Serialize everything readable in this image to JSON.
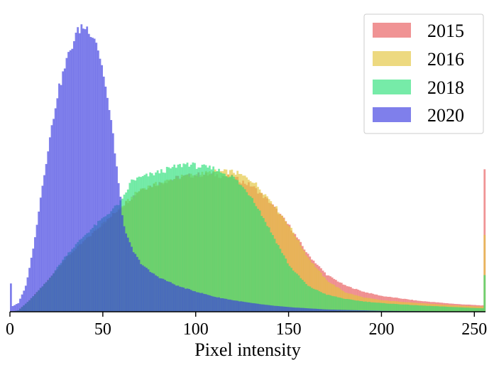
{
  "chart_data": {
    "type": "histogram",
    "title": "",
    "xlabel": "Pixel intensity",
    "ylabel": "",
    "xlim": [
      0,
      256
    ],
    "ylim": [
      0,
      1
    ],
    "x_ticks": [
      "0",
      "50",
      "100",
      "150",
      "200",
      "250"
    ],
    "y_axis_visible": false,
    "bins": 256,
    "legend": {
      "placement": "top-right"
    },
    "series": [
      {
        "name": "2015",
        "color": "#e8595a",
        "profile": [
          [
            0,
            0
          ],
          [
            4,
            0.005
          ],
          [
            10,
            0.04
          ],
          [
            20,
            0.11
          ],
          [
            30,
            0.19
          ],
          [
            40,
            0.25
          ],
          [
            50,
            0.31
          ],
          [
            60,
            0.37
          ],
          [
            70,
            0.43
          ],
          [
            80,
            0.45
          ],
          [
            90,
            0.47
          ],
          [
            100,
            0.48
          ],
          [
            110,
            0.48
          ],
          [
            120,
            0.47
          ],
          [
            130,
            0.44
          ],
          [
            140,
            0.38
          ],
          [
            150,
            0.3
          ],
          [
            160,
            0.2
          ],
          [
            170,
            0.13
          ],
          [
            180,
            0.092
          ],
          [
            190,
            0.07
          ],
          [
            200,
            0.055
          ],
          [
            220,
            0.038
          ],
          [
            240,
            0.027
          ],
          [
            254,
            0.022
          ],
          [
            255,
            0.49
          ]
        ]
      },
      {
        "name": "2016",
        "color": "#e4c53c",
        "profile": [
          [
            0,
            0
          ],
          [
            4,
            0.005
          ],
          [
            10,
            0.04
          ],
          [
            20,
            0.11
          ],
          [
            30,
            0.19
          ],
          [
            40,
            0.25
          ],
          [
            50,
            0.31
          ],
          [
            60,
            0.37
          ],
          [
            70,
            0.43
          ],
          [
            80,
            0.45
          ],
          [
            90,
            0.47
          ],
          [
            100,
            0.48
          ],
          [
            110,
            0.49
          ],
          [
            120,
            0.49
          ],
          [
            130,
            0.46
          ],
          [
            140,
            0.39
          ],
          [
            150,
            0.3
          ],
          [
            160,
            0.19
          ],
          [
            170,
            0.11
          ],
          [
            180,
            0.068
          ],
          [
            190,
            0.05
          ],
          [
            200,
            0.04
          ],
          [
            220,
            0.03
          ],
          [
            240,
            0.022
          ],
          [
            254,
            0.018
          ],
          [
            255,
            0.27
          ]
        ]
      },
      {
        "name": "2018",
        "color": "#2de07a",
        "profile": [
          [
            0,
            0
          ],
          [
            4,
            0.005
          ],
          [
            10,
            0.04
          ],
          [
            20,
            0.11
          ],
          [
            30,
            0.2
          ],
          [
            40,
            0.27
          ],
          [
            50,
            0.33
          ],
          [
            60,
            0.39
          ],
          [
            65,
            0.46
          ],
          [
            70,
            0.47
          ],
          [
            80,
            0.49
          ],
          [
            90,
            0.51
          ],
          [
            95,
            0.52
          ],
          [
            100,
            0.51
          ],
          [
            110,
            0.5
          ],
          [
            120,
            0.47
          ],
          [
            130,
            0.4
          ],
          [
            140,
            0.28
          ],
          [
            150,
            0.16
          ],
          [
            160,
            0.09
          ],
          [
            170,
            0.06
          ],
          [
            180,
            0.045
          ],
          [
            190,
            0.036
          ],
          [
            200,
            0.03
          ],
          [
            220,
            0.022
          ],
          [
            240,
            0.016
          ],
          [
            254,
            0.012
          ],
          [
            255,
            0.13
          ]
        ]
      },
      {
        "name": "2020",
        "color": "#3b3be0",
        "profile": [
          [
            0,
            0.1
          ],
          [
            1,
            0.02
          ],
          [
            4,
            0.03
          ],
          [
            8,
            0.09
          ],
          [
            12,
            0.22
          ],
          [
            16,
            0.4
          ],
          [
            20,
            0.57
          ],
          [
            25,
            0.76
          ],
          [
            30,
            0.88
          ],
          [
            35,
            0.97
          ],
          [
            38,
            1.0
          ],
          [
            42,
            0.99
          ],
          [
            46,
            0.95
          ],
          [
            50,
            0.83
          ],
          [
            55,
            0.62
          ],
          [
            58,
            0.45
          ],
          [
            60,
            0.34
          ],
          [
            62,
            0.27
          ],
          [
            64,
            0.24
          ],
          [
            66,
            0.21
          ],
          [
            70,
            0.17
          ],
          [
            75,
            0.14
          ],
          [
            80,
            0.12
          ],
          [
            90,
            0.09
          ],
          [
            100,
            0.07
          ],
          [
            110,
            0.052
          ],
          [
            120,
            0.04
          ],
          [
            130,
            0.03
          ],
          [
            140,
            0.022
          ],
          [
            150,
            0.016
          ],
          [
            170,
            0.008
          ],
          [
            200,
            0.003
          ],
          [
            255,
            0
          ]
        ]
      }
    ]
  }
}
